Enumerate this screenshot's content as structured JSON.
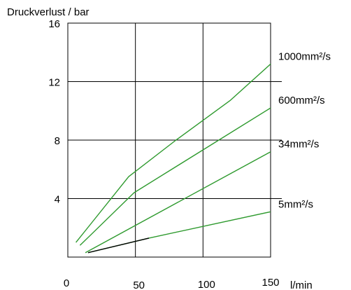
{
  "chart_data": {
    "type": "line",
    "title": "",
    "ylabel": "Druckverlust / bar",
    "xlabel": "l/min",
    "xlim": [
      0,
      150
    ],
    "ylim": [
      0,
      16
    ],
    "x_ticks": [
      {
        "value": 0,
        "label": "0"
      },
      {
        "value": 50,
        "label": "50"
      },
      {
        "value": 100,
        "label": "100"
      },
      {
        "value": 150,
        "label": "150"
      }
    ],
    "y_ticks": [
      {
        "value": 4,
        "label": "4"
      },
      {
        "value": 8,
        "label": "8"
      },
      {
        "value": 12,
        "label": "12"
      },
      {
        "value": 16,
        "label": "16"
      }
    ],
    "grid": true,
    "series": [
      {
        "name": "1000mm²/s",
        "color": "#2e9a2e",
        "x": [
          6,
          45,
          80,
          120,
          150
        ],
        "y": [
          1.0,
          5.5,
          8.0,
          10.7,
          13.2
        ]
      },
      {
        "name": "600mm²/s",
        "color": "#2e9a2e",
        "x": [
          9,
          49,
          150
        ],
        "y": [
          0.8,
          4.4,
          10.2
        ]
      },
      {
        "name": "34mm²/s",
        "color": "#2e9a2e",
        "x": [
          13,
          150
        ],
        "y": [
          0.3,
          7.2
        ]
      },
      {
        "name": "5mm²/s",
        "color": "#2e9a2e",
        "x": [
          15,
          60,
          150
        ],
        "y": [
          0.3,
          1.3,
          3.1
        ]
      },
      {
        "name": "",
        "color": "#000000",
        "x": [
          15,
          60
        ],
        "y": [
          0.3,
          1.3
        ]
      }
    ]
  }
}
